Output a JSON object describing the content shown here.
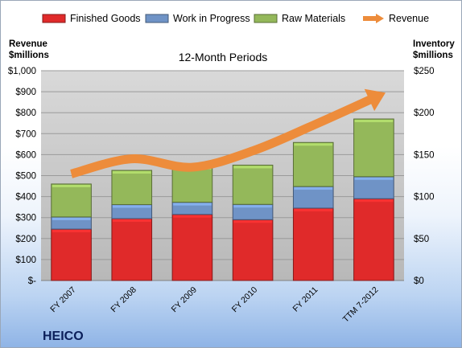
{
  "chart_data": {
    "type": "bar",
    "stacked": true,
    "title": "12-Month Periods",
    "company": "HEICO",
    "categories": [
      "FY 2007",
      "FY 2008",
      "FY 2009",
      "FY 2010",
      "FY 2011",
      "TTM 7-2012"
    ],
    "series": [
      {
        "name": "Finished Goods",
        "color": "#e02a2a",
        "axis": "left",
        "values": [
          245,
          295,
          315,
          290,
          345,
          390
        ]
      },
      {
        "name": "Work in Progress",
        "color": "#6f93c6",
        "axis": "left",
        "values": [
          58,
          67,
          58,
          73,
          103,
          105
        ]
      },
      {
        "name": "Raw Materials",
        "color": "#94b85a",
        "axis": "left",
        "values": [
          157,
          163,
          172,
          187,
          210,
          275
        ]
      },
      {
        "name": "Revenue",
        "color": "#ed8c3b",
        "axis": "left",
        "type": "line",
        "values": [
          508,
          580,
          540,
          618,
          740,
          870
        ]
      }
    ],
    "ylabel_left": [
      "Revenue",
      "$millions"
    ],
    "ylabel_right": [
      "Inventory",
      "$millions"
    ],
    "ylim_left": [
      0,
      1000
    ],
    "ylim_right": [
      0,
      250
    ],
    "yticks_left": [
      "$-",
      "$100",
      "$200",
      "$300",
      "$400",
      "$500",
      "$600",
      "$700",
      "$800",
      "$900",
      "$1,000"
    ],
    "yticks_right": [
      "$0",
      "$50",
      "$100",
      "$150",
      "$200",
      "$250"
    ],
    "grid": true,
    "legend_position": "top"
  }
}
